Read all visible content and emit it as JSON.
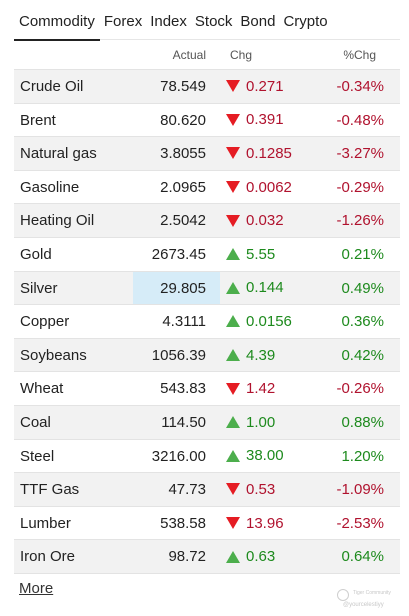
{
  "tabs": [
    {
      "label": "Commodity",
      "active": true
    },
    {
      "label": "Forex",
      "active": false
    },
    {
      "label": "Index",
      "active": false
    },
    {
      "label": "Stock",
      "active": false
    },
    {
      "label": "Bond",
      "active": false
    },
    {
      "label": "Crypto",
      "active": false
    }
  ],
  "table": {
    "headers": {
      "name": "",
      "actual": "Actual",
      "chg": "Chg",
      "pct": "%Chg"
    },
    "rows": [
      {
        "name": "Crude Oil",
        "actual": "78.549",
        "dir": "down",
        "chg": "0.271",
        "pct": "-0.34%"
      },
      {
        "name": "Brent",
        "actual": "80.620",
        "dir": "down",
        "chg": "0.391",
        "pct": "-0.48%"
      },
      {
        "name": "Natural gas",
        "actual": "3.8055",
        "dir": "down",
        "chg": "0.1285",
        "pct": "-3.27%"
      },
      {
        "name": "Gasoline",
        "actual": "2.0965",
        "dir": "down",
        "chg": "0.0062",
        "pct": "-0.29%"
      },
      {
        "name": "Heating Oil",
        "actual": "2.5042",
        "dir": "down",
        "chg": "0.032",
        "pct": "-1.26%"
      },
      {
        "name": "Gold",
        "actual": "2673.45",
        "dir": "up",
        "chg": "5.55",
        "pct": "0.21%"
      },
      {
        "name": "Silver",
        "actual": "29.805",
        "dir": "up",
        "chg": "0.144",
        "pct": "0.49%",
        "highlight": true
      },
      {
        "name": "Copper",
        "actual": "4.3111",
        "dir": "up",
        "chg": "0.0156",
        "pct": "0.36%"
      },
      {
        "name": "Soybeans",
        "actual": "1056.39",
        "dir": "up",
        "chg": "4.39",
        "pct": "0.42%"
      },
      {
        "name": "Wheat",
        "actual": "543.83",
        "dir": "down",
        "chg": "1.42",
        "pct": "-0.26%"
      },
      {
        "name": "Coal",
        "actual": "114.50",
        "dir": "up",
        "chg": "1.00",
        "pct": "0.88%"
      },
      {
        "name": "Steel",
        "actual": "3216.00",
        "dir": "up",
        "chg": "38.00",
        "pct": "1.20%"
      },
      {
        "name": "TTF Gas",
        "actual": "47.73",
        "dir": "down",
        "chg": "0.53",
        "pct": "-1.09%"
      },
      {
        "name": "Lumber",
        "actual": "538.58",
        "dir": "down",
        "chg": "13.96",
        "pct": "-2.53%"
      },
      {
        "name": "Iron Ore",
        "actual": "98.72",
        "dir": "up",
        "chg": "0.63",
        "pct": "0.64%"
      }
    ]
  },
  "more_label": "More",
  "watermark": {
    "line1": "Tiger Community",
    "line2": "@yourcelestiyy"
  },
  "colors": {
    "up": "#4cae4c",
    "down": "#e51c23",
    "neg_text": "#b0122e",
    "pos_text": "#1d8a1d",
    "highlight": "#d6ecf8"
  }
}
